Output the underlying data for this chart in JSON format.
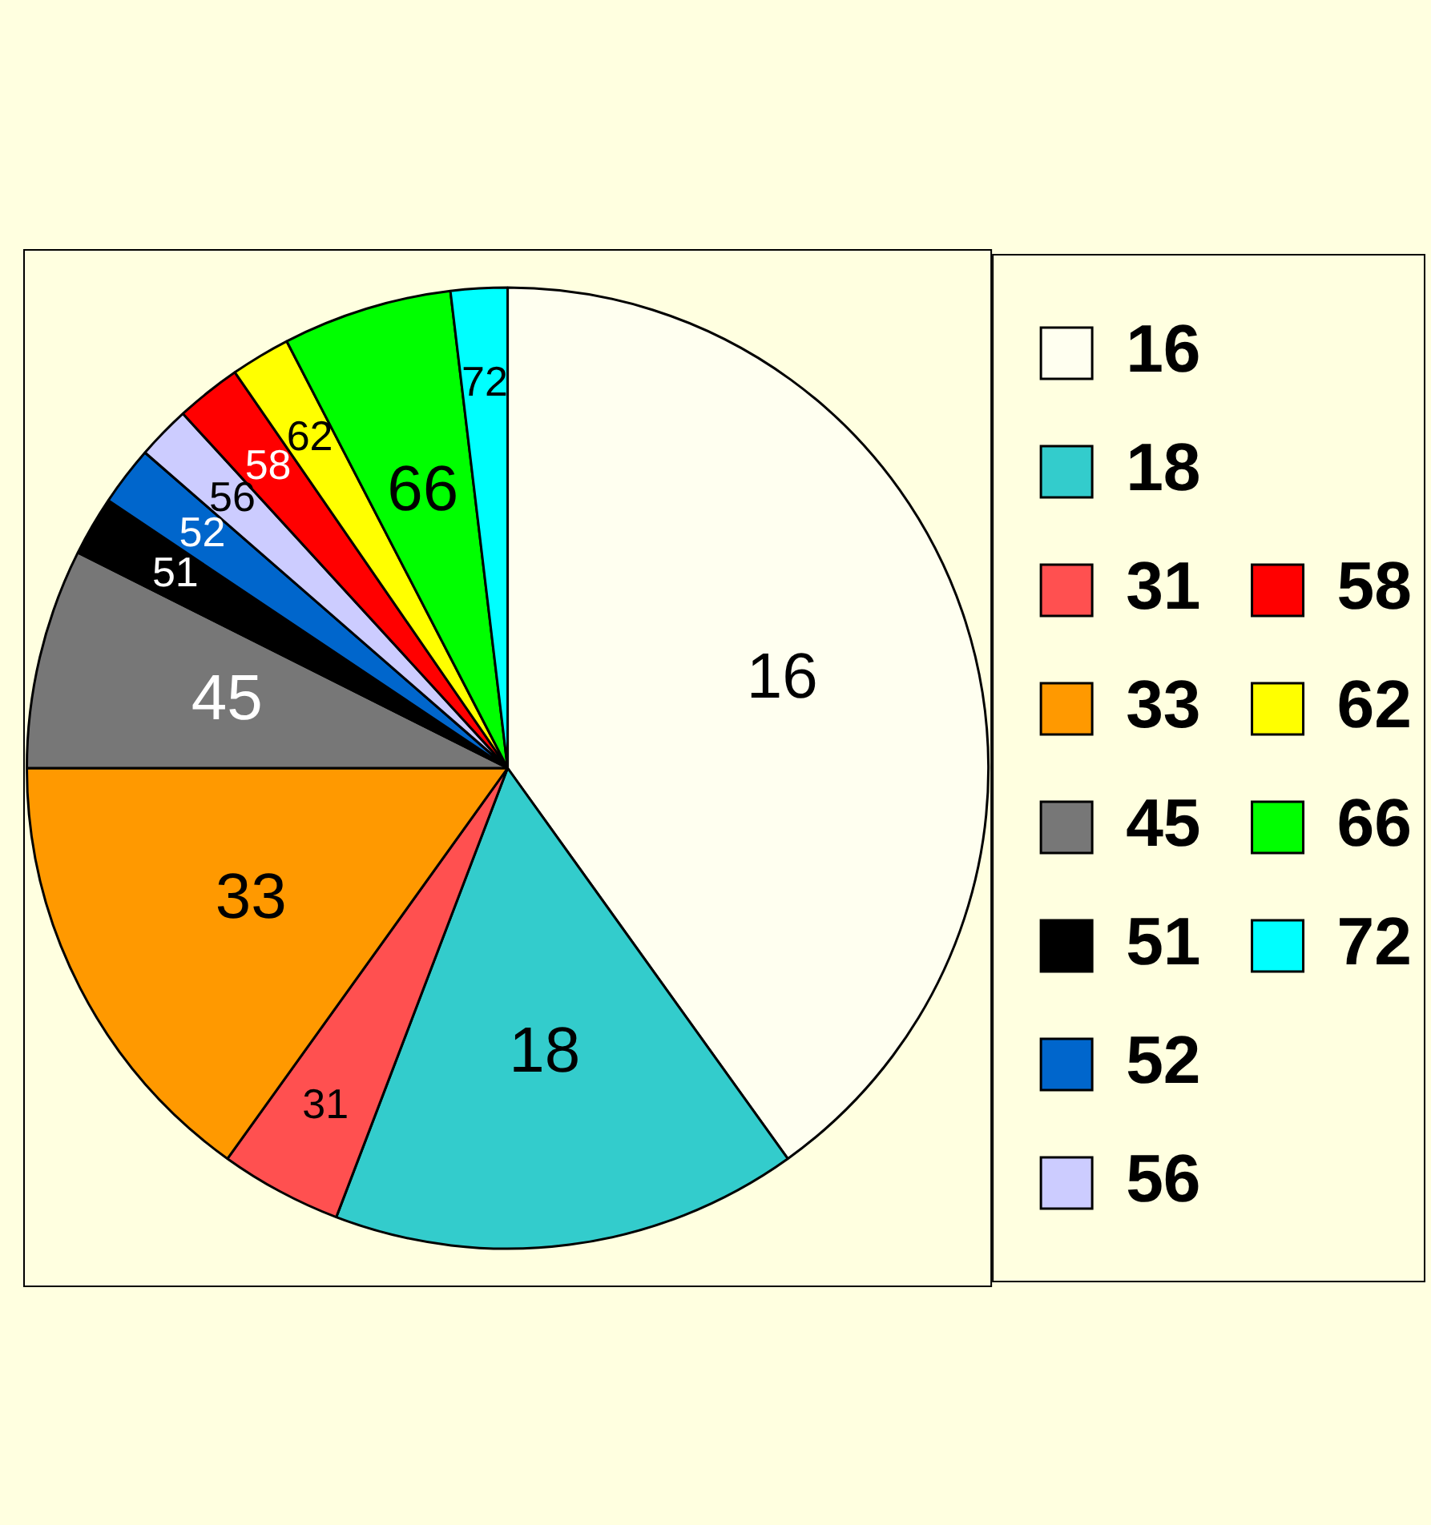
{
  "chart_data": {
    "type": "pie",
    "categories": [
      "16",
      "18",
      "31",
      "33",
      "45",
      "51",
      "52",
      "56",
      "58",
      "62",
      "66",
      "72"
    ],
    "values": [
      40.1,
      15.7,
      4.1,
      15.1,
      7.4,
      2.0,
      2.0,
      1.8,
      2.2,
      2.0,
      5.7,
      1.9
    ],
    "colors": [
      "#fffff0",
      "#33cccc",
      "#ff5050",
      "#ff9900",
      "#777777",
      "#000000",
      "#0066cc",
      "#ccccff",
      "#ff0000",
      "#ffff00",
      "#00ff00",
      "#00ffff"
    ],
    "legend": "right"
  }
}
